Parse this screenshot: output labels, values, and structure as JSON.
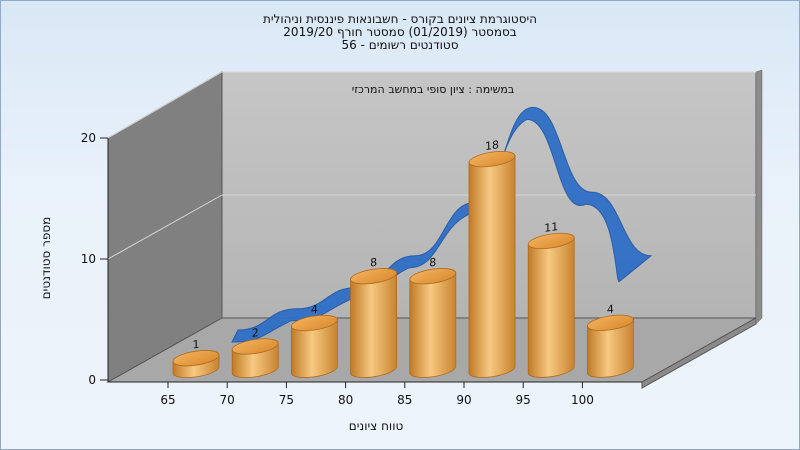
{
  "header": {
    "title_lines": [
      "היסטוגרמת ציונים בקורס - חשבונאות פיננסית וניהולית",
      "בסמסטר  (01/2019)  סמסטר חורף 2019/20",
      "סטודנטים רשומים - 56"
    ]
  },
  "chart_data": {
    "type": "bar",
    "subtitle": "במשימה : ציון סופי במחשב המרכזי",
    "xlabel": "טווח ציונים",
    "ylabel": "מספר סטודנטים",
    "x_ticks": [
      "65",
      "70",
      "75",
      "80",
      "85",
      "90",
      "95",
      "100"
    ],
    "y_ticks": [
      "0",
      "10",
      "20"
    ],
    "ylim": [
      0,
      20
    ],
    "categories": [
      "65-70",
      "70-75",
      "75-80",
      "80-85",
      "85-90",
      "90-95",
      "95-100",
      "100"
    ],
    "values": [
      1,
      2,
      4,
      8,
      8,
      18,
      11,
      4
    ],
    "trend_line": [
      0,
      2,
      4,
      7,
      12,
      21,
      13,
      7
    ],
    "colors": {
      "bar": "#e8a24a",
      "trend": "#2f6fc6",
      "back_wall": "#c0c0c0",
      "side_wall": "#7a7a7a",
      "floor": "#9a9a9a"
    }
  }
}
